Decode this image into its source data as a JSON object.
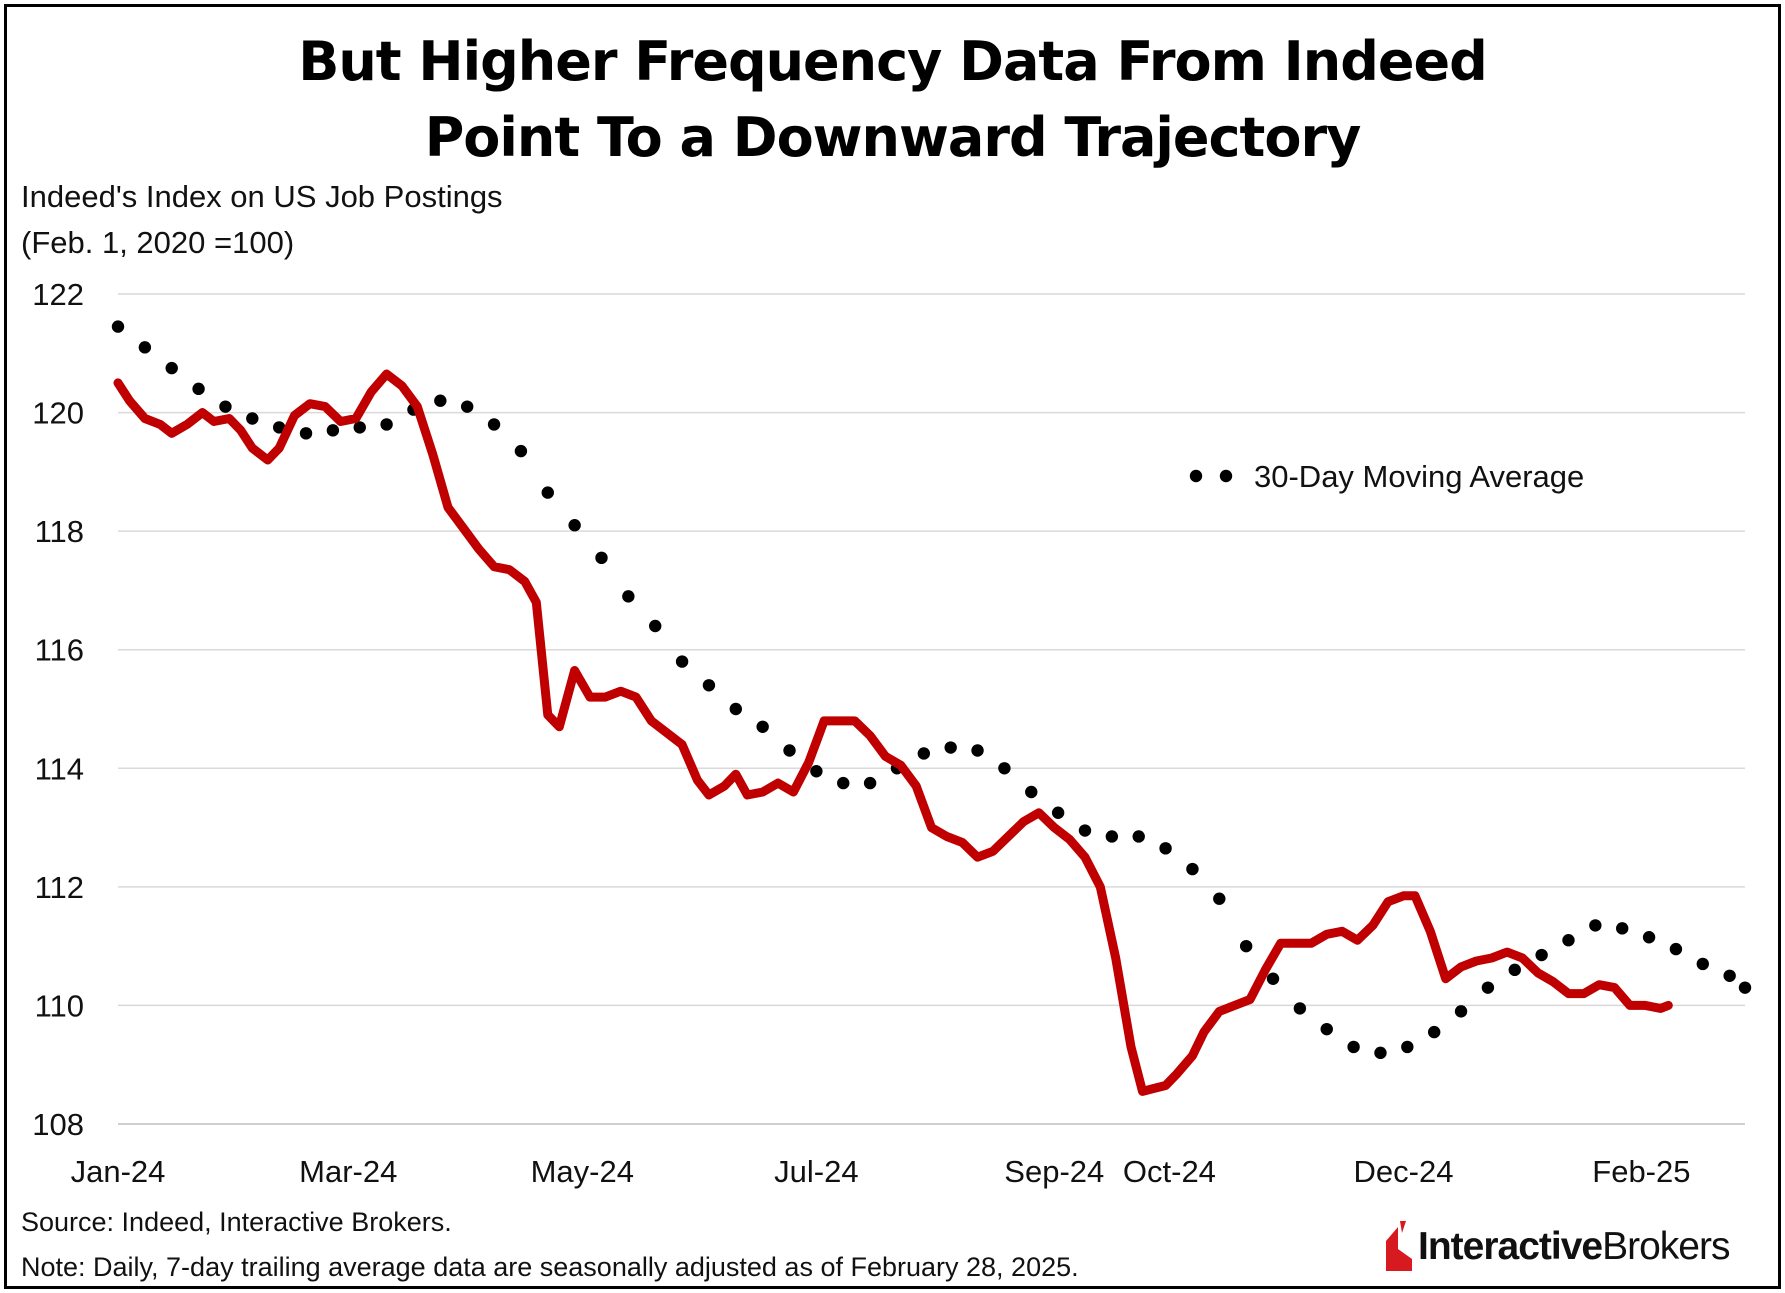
{
  "title_lines": [
    "But Higher Frequency Data From Indeed",
    "Point To a Downward Trajectory"
  ],
  "ylabel_lines": [
    "Indeed's Index on US Job Postings",
    "(Feb. 1, 2020 =100)"
  ],
  "footer": {
    "source": "Source: Indeed, Interactive Brokers.",
    "note": "Note: Daily, 7-day trailing average data are seasonally adjusted as of February 28, 2025."
  },
  "logo": {
    "bold": "Interactive",
    "regular": "Brokers"
  },
  "colors": {
    "daily": "#c00000",
    "moving_average": "#000000",
    "grid": "#d9d9d9",
    "logo_red": "#d71920"
  },
  "chart_data": {
    "type": "line",
    "title": "But Higher Frequency Data From Indeed Point To a Downward Trajectory",
    "ylabel": "Indeed's Index on US Job Postings (Feb. 1, 2020 =100)",
    "xlabel": "",
    "ylim": [
      108,
      122
    ],
    "yticks": [
      108,
      110,
      112,
      114,
      116,
      118,
      120,
      122
    ],
    "xlim": [
      "2024-01-01",
      "2025-02-28"
    ],
    "x_tick_labels": [
      "Jan-24",
      "Mar-24",
      "May-24",
      "Jul-24",
      "Sep-24",
      "Oct-24",
      "Dec-24",
      "Feb-25"
    ],
    "x_tick_dates": [
      "2024-01-01",
      "2024-03-01",
      "2024-05-01",
      "2024-07-01",
      "2024-09-01",
      "2024-10-01",
      "2024-12-01",
      "2025-02-01"
    ],
    "grid": "horizontal",
    "legend": {
      "position": "top-right",
      "entries": [
        "30-Day Moving Average"
      ]
    },
    "series": [
      {
        "style": "solid",
        "points": [
          [
            "2024-01-01",
            120.5
          ],
          [
            "2024-01-04",
            120.2
          ],
          [
            "2024-01-08",
            119.9
          ],
          [
            "2024-01-12",
            119.8
          ],
          [
            "2024-01-15",
            119.65
          ],
          [
            "2024-01-19",
            119.8
          ],
          [
            "2024-01-23",
            120.0
          ],
          [
            "2024-01-26",
            119.85
          ],
          [
            "2024-01-30",
            119.9
          ],
          [
            "2024-02-02",
            119.7
          ],
          [
            "2024-02-05",
            119.4
          ],
          [
            "2024-02-09",
            119.2
          ],
          [
            "2024-02-12",
            119.4
          ],
          [
            "2024-02-16",
            119.95
          ],
          [
            "2024-02-20",
            120.15
          ],
          [
            "2024-02-24",
            120.1
          ],
          [
            "2024-02-28",
            119.85
          ],
          [
            "2024-03-03",
            119.9
          ],
          [
            "2024-03-07",
            120.35
          ],
          [
            "2024-03-11",
            120.65
          ],
          [
            "2024-03-15",
            120.45
          ],
          [
            "2024-03-19",
            120.1
          ],
          [
            "2024-03-23",
            119.3
          ],
          [
            "2024-03-27",
            118.4
          ],
          [
            "2024-03-31",
            118.05
          ],
          [
            "2024-04-04",
            117.7
          ],
          [
            "2024-04-08",
            117.4
          ],
          [
            "2024-04-12",
            117.35
          ],
          [
            "2024-04-16",
            117.15
          ],
          [
            "2024-04-19",
            116.8
          ],
          [
            "2024-04-22",
            114.9
          ],
          [
            "2024-04-25",
            114.7
          ],
          [
            "2024-04-29",
            115.65
          ],
          [
            "2024-05-03",
            115.2
          ],
          [
            "2024-05-07",
            115.2
          ],
          [
            "2024-05-11",
            115.3
          ],
          [
            "2024-05-15",
            115.2
          ],
          [
            "2024-05-19",
            114.8
          ],
          [
            "2024-05-23",
            114.6
          ],
          [
            "2024-05-27",
            114.4
          ],
          [
            "2024-05-31",
            113.8
          ],
          [
            "2024-06-03",
            113.55
          ],
          [
            "2024-06-07",
            113.7
          ],
          [
            "2024-06-10",
            113.9
          ],
          [
            "2024-06-13",
            113.55
          ],
          [
            "2024-06-17",
            113.6
          ],
          [
            "2024-06-21",
            113.75
          ],
          [
            "2024-06-25",
            113.6
          ],
          [
            "2024-06-29",
            114.1
          ],
          [
            "2024-07-03",
            114.8
          ],
          [
            "2024-07-07",
            114.8
          ],
          [
            "2024-07-11",
            114.8
          ],
          [
            "2024-07-15",
            114.55
          ],
          [
            "2024-07-19",
            114.2
          ],
          [
            "2024-07-23",
            114.05
          ],
          [
            "2024-07-27",
            113.7
          ],
          [
            "2024-07-31",
            113.0
          ],
          [
            "2024-08-04",
            112.85
          ],
          [
            "2024-08-08",
            112.75
          ],
          [
            "2024-08-12",
            112.5
          ],
          [
            "2024-08-16",
            112.6
          ],
          [
            "2024-08-20",
            112.85
          ],
          [
            "2024-08-24",
            113.1
          ],
          [
            "2024-08-28",
            113.25
          ],
          [
            "2024-09-01",
            113.0
          ],
          [
            "2024-09-05",
            112.8
          ],
          [
            "2024-09-09",
            112.5
          ],
          [
            "2024-09-13",
            112.0
          ],
          [
            "2024-09-17",
            110.8
          ],
          [
            "2024-09-21",
            109.3
          ],
          [
            "2024-09-24",
            108.55
          ],
          [
            "2024-09-27",
            108.6
          ],
          [
            "2024-09-30",
            108.65
          ],
          [
            "2024-10-03",
            108.85
          ],
          [
            "2024-10-07",
            109.15
          ],
          [
            "2024-10-10",
            109.55
          ],
          [
            "2024-10-14",
            109.9
          ],
          [
            "2024-10-18",
            110.0
          ],
          [
            "2024-10-22",
            110.1
          ],
          [
            "2024-10-26",
            110.6
          ],
          [
            "2024-10-30",
            111.05
          ],
          [
            "2024-11-03",
            111.05
          ],
          [
            "2024-11-07",
            111.05
          ],
          [
            "2024-11-11",
            111.2
          ],
          [
            "2024-11-15",
            111.25
          ],
          [
            "2024-11-19",
            111.1
          ],
          [
            "2024-11-23",
            111.35
          ],
          [
            "2024-11-27",
            111.75
          ],
          [
            "2024-12-01",
            111.85
          ],
          [
            "2024-12-04",
            111.85
          ],
          [
            "2024-12-08",
            111.25
          ],
          [
            "2024-12-12",
            110.45
          ],
          [
            "2024-12-16",
            110.65
          ],
          [
            "2024-12-20",
            110.75
          ],
          [
            "2024-12-24",
            110.8
          ],
          [
            "2024-12-28",
            110.9
          ],
          [
            "2025-01-01",
            110.8
          ],
          [
            "2025-01-05",
            110.55
          ],
          [
            "2025-01-09",
            110.4
          ],
          [
            "2025-01-13",
            110.2
          ],
          [
            "2025-01-17",
            110.2
          ],
          [
            "2025-01-21",
            110.35
          ],
          [
            "2025-01-25",
            110.3
          ],
          [
            "2025-01-29",
            110.0
          ],
          [
            "2025-02-02",
            110.0
          ],
          [
            "2025-02-06",
            109.95
          ],
          [
            "2025-02-08",
            110.0
          ]
        ]
      },
      {
        "name": "30-Day Moving Average",
        "style": "dotted",
        "points": [
          [
            "2024-01-01",
            121.45
          ],
          [
            "2024-01-08",
            121.1
          ],
          [
            "2024-01-15",
            120.75
          ],
          [
            "2024-01-22",
            120.4
          ],
          [
            "2024-01-29",
            120.1
          ],
          [
            "2024-02-05",
            119.9
          ],
          [
            "2024-02-12",
            119.75
          ],
          [
            "2024-02-19",
            119.65
          ],
          [
            "2024-02-26",
            119.7
          ],
          [
            "2024-03-04",
            119.75
          ],
          [
            "2024-03-11",
            119.8
          ],
          [
            "2024-03-18",
            120.05
          ],
          [
            "2024-03-25",
            120.2
          ],
          [
            "2024-04-01",
            120.1
          ],
          [
            "2024-04-08",
            119.8
          ],
          [
            "2024-04-15",
            119.35
          ],
          [
            "2024-04-22",
            118.65
          ],
          [
            "2024-04-29",
            118.1
          ],
          [
            "2024-05-06",
            117.55
          ],
          [
            "2024-05-13",
            116.9
          ],
          [
            "2024-05-20",
            116.4
          ],
          [
            "2024-05-27",
            115.8
          ],
          [
            "2024-06-03",
            115.4
          ],
          [
            "2024-06-10",
            115.0
          ],
          [
            "2024-06-17",
            114.7
          ],
          [
            "2024-06-24",
            114.3
          ],
          [
            "2024-07-01",
            113.95
          ],
          [
            "2024-07-08",
            113.75
          ],
          [
            "2024-07-15",
            113.75
          ],
          [
            "2024-07-22",
            114.0
          ],
          [
            "2024-07-29",
            114.25
          ],
          [
            "2024-08-05",
            114.35
          ],
          [
            "2024-08-12",
            114.3
          ],
          [
            "2024-08-19",
            114.0
          ],
          [
            "2024-08-26",
            113.6
          ],
          [
            "2024-09-02",
            113.25
          ],
          [
            "2024-09-09",
            112.95
          ],
          [
            "2024-09-16",
            112.85
          ],
          [
            "2024-09-23",
            112.85
          ],
          [
            "2024-09-30",
            112.65
          ],
          [
            "2024-10-07",
            112.3
          ],
          [
            "2024-10-14",
            111.8
          ],
          [
            "2024-10-21",
            111.0
          ],
          [
            "2024-10-28",
            110.45
          ],
          [
            "2024-11-04",
            109.95
          ],
          [
            "2024-11-11",
            109.6
          ],
          [
            "2024-11-18",
            109.3
          ],
          [
            "2024-11-25",
            109.2
          ],
          [
            "2024-12-02",
            109.3
          ],
          [
            "2024-12-09",
            109.55
          ],
          [
            "2024-12-16",
            109.9
          ],
          [
            "2024-12-23",
            110.3
          ],
          [
            "2024-12-30",
            110.6
          ],
          [
            "2025-01-06",
            110.85
          ],
          [
            "2025-01-13",
            111.1
          ],
          [
            "2025-01-20",
            111.35
          ],
          [
            "2025-01-27",
            111.3
          ],
          [
            "2025-02-03",
            111.15
          ],
          [
            "2025-02-10",
            110.95
          ],
          [
            "2025-02-17",
            110.7
          ],
          [
            "2025-02-24",
            110.5
          ],
          [
            "2025-02-28",
            110.3
          ]
        ]
      }
    ]
  }
}
